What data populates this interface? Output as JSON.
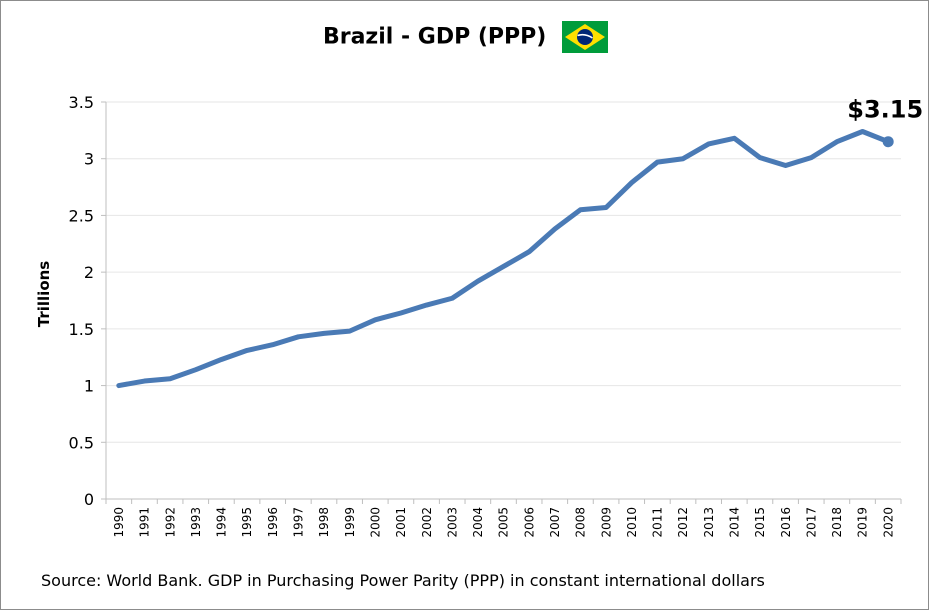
{
  "chart_data": {
    "type": "line",
    "title": "Brazil - GDP (PPP)",
    "ylabel": "Trillions",
    "xlabel": "",
    "ylim": [
      0,
      3.5
    ],
    "yticks": [
      "0",
      "0.5",
      "1",
      "1.5",
      "2",
      "2.5",
      "3",
      "3.5"
    ],
    "grid": true,
    "legend": "none",
    "categories": [
      "1990",
      "1991",
      "1992",
      "1993",
      "1994",
      "1995",
      "1996",
      "1997",
      "1998",
      "1999",
      "2000",
      "2001",
      "2002",
      "2003",
      "2004",
      "2005",
      "2006",
      "2007",
      "2008",
      "2009",
      "2010",
      "2011",
      "2012",
      "2013",
      "2014",
      "2015",
      "2016",
      "2017",
      "2018",
      "2019",
      "2020"
    ],
    "series": [
      {
        "values": [
          1.0,
          1.04,
          1.06,
          1.14,
          1.23,
          1.31,
          1.36,
          1.43,
          1.46,
          1.48,
          1.58,
          1.64,
          1.71,
          1.77,
          1.92,
          2.05,
          2.18,
          2.38,
          2.55,
          2.57,
          2.79,
          2.97,
          3.0,
          3.13,
          3.18,
          3.01,
          2.94,
          3.01,
          3.15,
          3.24,
          3.15
        ],
        "color": "#4a7ab5"
      }
    ],
    "end_label": "$3.15",
    "source": "Source: World Bank.  GDP in Purchasing Power Parity (PPP) in constant international dollars"
  },
  "flag": {
    "icon": "brazil-flag-icon",
    "green": "#009c3b",
    "yellow": "#ffdf00",
    "blue": "#002776"
  }
}
